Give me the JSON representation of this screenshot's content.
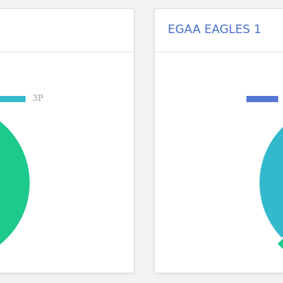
{
  "colors": {
    "green": "#1ec98c",
    "teal": "#34b9cc",
    "blue": "#5577d6",
    "title": "#4a6fce"
  },
  "panels": [
    {
      "title": "",
      "legend": [
        {
          "label": "3P",
          "color": "#34b9cc"
        }
      ]
    },
    {
      "title": "EGAA EAGLES 1",
      "legend": [
        {
          "label": "",
          "color": "#5577d6"
        }
      ]
    }
  ]
}
